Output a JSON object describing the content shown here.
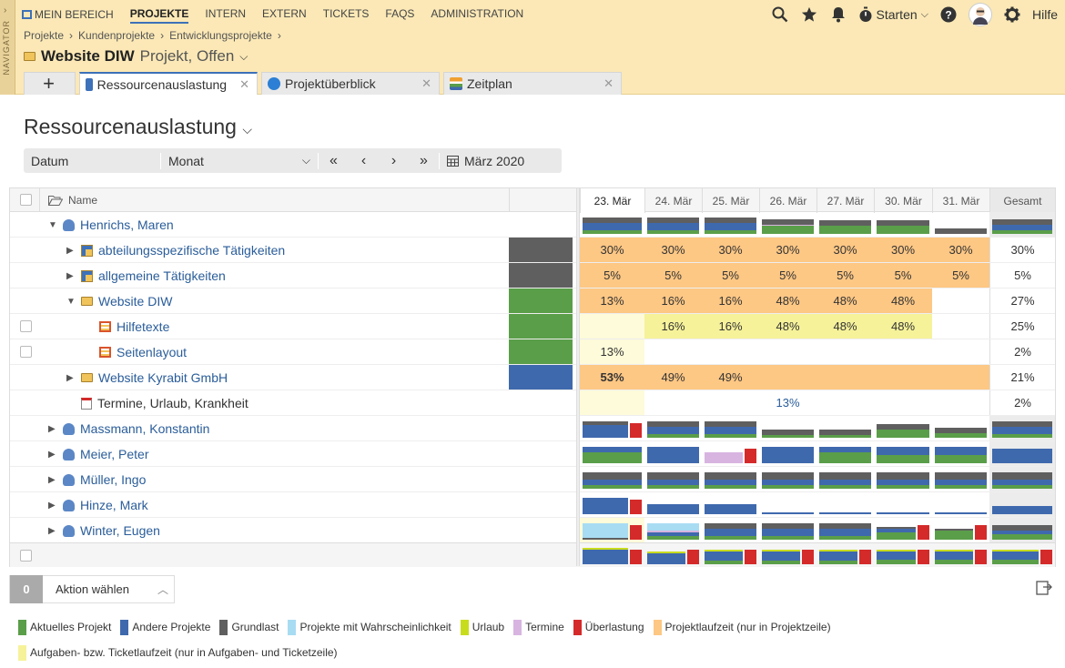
{
  "nav": {
    "label": "NAVIGATOR",
    "items": [
      {
        "label": "MEIN BEREICH"
      },
      {
        "label": "PROJEKTE"
      },
      {
        "label": "INTERN"
      },
      {
        "label": "EXTERN"
      },
      {
        "label": "TICKETS"
      },
      {
        "label": "FAQS"
      },
      {
        "label": "ADMINISTRATION"
      }
    ],
    "starten": "Starten",
    "hilfe": "Hilfe"
  },
  "breadcrumb": [
    "Projekte",
    "Kundenprojekte",
    "Entwicklungsprojekte"
  ],
  "project": {
    "name": "Website DIW",
    "subtitle": "Projekt, Offen"
  },
  "tabs": [
    {
      "label": "Ressourcenauslastung"
    },
    {
      "label": "Projektüberblick"
    },
    {
      "label": "Zeitplan"
    }
  ],
  "page_title": "Ressourcenauslastung",
  "toolbar": {
    "datum": "Datum",
    "unit": "Monat",
    "period": "März 2020"
  },
  "table": {
    "name_header": "Name",
    "columns": [
      "23. Mär",
      "24. Mär",
      "25. Mär",
      "26. Mär",
      "27. Mär",
      "30. Mär",
      "31. Mär",
      "Gesamt"
    ],
    "rows": [
      {
        "label": "Henrichs, Maren",
        "type": "person",
        "cells": []
      },
      {
        "label": "abteilungsspezifische Tätigkeiten",
        "cells": [
          "30%",
          "30%",
          "30%",
          "30%",
          "30%",
          "30%",
          "30%",
          "30%"
        ]
      },
      {
        "label": "allgemeine Tätigkeiten",
        "cells": [
          "5%",
          "5%",
          "5%",
          "5%",
          "5%",
          "5%",
          "5%",
          "5%"
        ]
      },
      {
        "label": "Website DIW",
        "cells": [
          "13%",
          "16%",
          "16%",
          "48%",
          "48%",
          "48%",
          "",
          "27%"
        ]
      },
      {
        "label": "Hilfetexte",
        "cells": [
          "",
          "16%",
          "16%",
          "48%",
          "48%",
          "48%",
          "",
          "25%"
        ]
      },
      {
        "label": "Seitenlayout",
        "cells": [
          "13%",
          "",
          "",
          "",
          "",
          "",
          "",
          "2%"
        ]
      },
      {
        "label": "Website Kyrabit GmbH",
        "cells": [
          "53%",
          "49%",
          "49%",
          "",
          "",
          "",
          "",
          "21%"
        ]
      },
      {
        "label": "Termine, Urlaub, Krankheit",
        "cells": [
          "",
          "",
          "",
          "13%",
          "",
          "",
          "",
          "2%"
        ]
      },
      {
        "label": "Massmann, Konstantin",
        "type": "person",
        "cells": []
      },
      {
        "label": "Meier, Peter",
        "type": "person",
        "cells": []
      },
      {
        "label": "Müller, Ingo",
        "type": "person",
        "cells": []
      },
      {
        "label": "Hinze, Mark",
        "type": "person",
        "cells": []
      },
      {
        "label": "Winter, Eugen",
        "type": "person",
        "cells": []
      }
    ]
  },
  "action": {
    "count": "0",
    "label": "Aktion wählen"
  },
  "legend": [
    {
      "label": "Aktuelles Projekt",
      "color": "#5a9e49"
    },
    {
      "label": "Andere Projekte",
      "color": "#3f69ad"
    },
    {
      "label": "Grundlast",
      "color": "#5f5f5f"
    },
    {
      "label": "Projekte mit Wahrscheinlichkeit",
      "color": "#a8dcf3"
    },
    {
      "label": "Urlaub",
      "color": "#c8dc1e"
    },
    {
      "label": "Termine",
      "color": "#d8b4e0"
    },
    {
      "label": "Überlastung",
      "color": "#d42a2a"
    },
    {
      "label": "Projektlaufzeit (nur in Projektzeile)",
      "color": "#fdc784"
    },
    {
      "label": "Aufgaben- bzw. Ticketlaufzeit (nur in Aufgaben- und Ticketzeile)",
      "color": "#f6f29a"
    }
  ]
}
